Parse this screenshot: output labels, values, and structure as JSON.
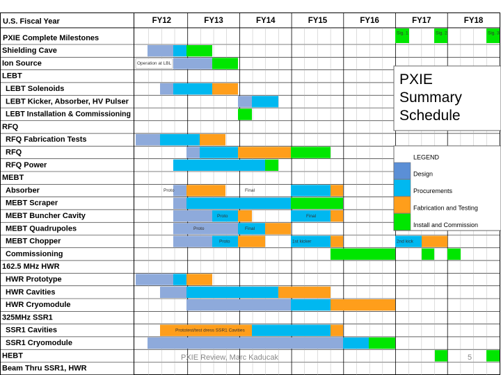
{
  "header": {
    "left": "U.S. Fiscal Year",
    "years": [
      "FY12",
      "FY13",
      "FY14",
      "FY15",
      "FY16",
      "FY17",
      "FY18"
    ]
  },
  "milestones": {
    "label": "PXIE Complete Milestones",
    "items": [
      "Sig. 1",
      "Sig. 2",
      "Sig. 3"
    ]
  },
  "rows": [
    "Shielding Cave",
    "Ion Source",
    "LEBT",
    "LEBT Solenoids",
    "LEBT Kicker, Absorber, HV Pulser",
    "LEBT Installation & Commissioning",
    "RFQ",
    "RFQ Fabrication Tests",
    "RFQ",
    "RFQ Power",
    "MEBT",
    "Absorber",
    "MEBT Scraper",
    "MEBT Buncher Cavity",
    "MEBT Quadrupoles",
    "MEBT Chopper",
    "Commissioning",
    "162.5 MHz HWR",
    "HWR Prototype",
    "HWR Cavities",
    "HWR Cryomodule",
    "325MHz SSR1",
    "SSR1 Cavities",
    "SSR1 Cryomodule",
    "HEBT",
    "Beam Thru SSR1, HWR"
  ],
  "annotations": [
    "Operation at LBL",
    "Proto",
    "Final",
    "Proto",
    "Final",
    "Proto",
    "Final",
    "Proto",
    "1st kicker",
    "2nd kick",
    "Prototest/test dress SSR1 Cavities"
  ],
  "summary": "PXIE Summary Schedule",
  "legend": {
    "title": "LEGEND",
    "items": [
      "Design",
      "Procurements",
      "Fabrication and Testing",
      "Install and Commission"
    ]
  },
  "footer": {
    "text": "PXIE Review, Marc Kaducak",
    "page": "5"
  }
}
